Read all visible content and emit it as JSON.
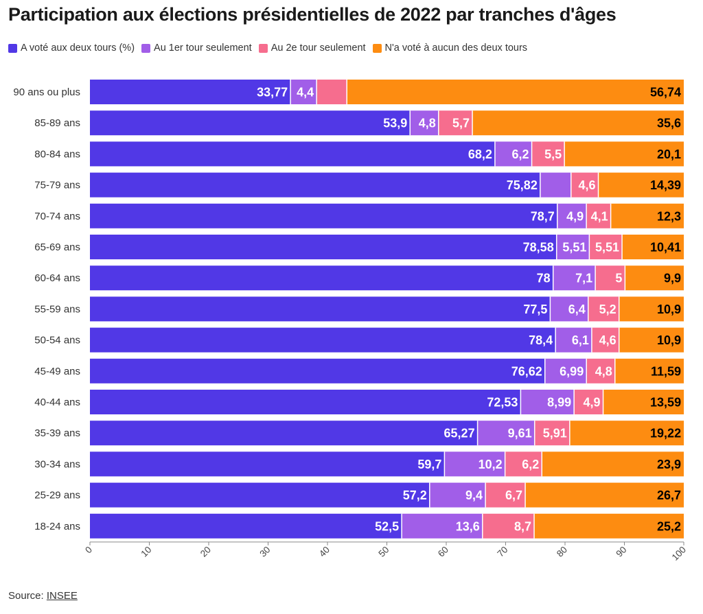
{
  "title": "Participation aux élections présidentielles de 2022 par tranches d'âges",
  "source": {
    "prefix": "Source: ",
    "link_text": "INSEE"
  },
  "chart_data": {
    "type": "bar",
    "orientation": "horizontal",
    "stacked": true,
    "categories": [
      "90 ans ou plus",
      "85-89 ans",
      "80-84 ans",
      "75-79 ans",
      "70-74 ans",
      "65-69 ans",
      "60-64 ans",
      "55-59 ans",
      "50-54 ans",
      "45-49 ans",
      "40-44 ans",
      "35-39 ans",
      "30-34 ans",
      "25-29 ans",
      "18-24 ans"
    ],
    "series": [
      {
        "name": "A voté aux deux tours (%)",
        "color": "#5138e6",
        "label_color": "#ffffff",
        "values": [
          33.77,
          53.9,
          68.2,
          75.82,
          78.7,
          78.58,
          78,
          77.5,
          78.4,
          76.62,
          72.53,
          65.27,
          59.7,
          57.2,
          52.5
        ],
        "labels": [
          "33,77",
          "53,9",
          "68,2",
          "75,82",
          "78,7",
          "78,58",
          "78",
          "77,5",
          "78,4",
          "76,62",
          "72,53",
          "65,27",
          "59,7",
          "57,2",
          "52,5"
        ]
      },
      {
        "name": "Au 1er tour seulement",
        "color": "#a15ee8",
        "label_color": "#ffffff",
        "values": [
          4.4,
          4.8,
          6.2,
          5.19,
          4.9,
          5.51,
          7.1,
          6.4,
          6.1,
          6.99,
          8.99,
          9.61,
          10.2,
          9.4,
          13.6
        ],
        "labels": [
          "4,4",
          "4,8",
          "6,2",
          "",
          "4,9",
          "5,51",
          "7,1",
          "6,4",
          "6,1",
          "6,99",
          "8,99",
          "9,61",
          "10,2",
          "9,4",
          "13,6"
        ]
      },
      {
        "name": "Au 2e tour seulement",
        "color": "#f66d8e",
        "label_color": "#ffffff",
        "values": [
          5.09,
          5.7,
          5.5,
          4.6,
          4.1,
          5.51,
          5,
          5.2,
          4.6,
          4.8,
          4.9,
          5.91,
          6.2,
          6.7,
          8.7
        ],
        "labels": [
          "",
          "5,7",
          "5,5",
          "4,6",
          "4,1",
          "5,51",
          "5",
          "5,2",
          "4,6",
          "4,8",
          "4,9",
          "5,91",
          "6,2",
          "6,7",
          "8,7"
        ]
      },
      {
        "name": "N'a voté à aucun des deux tours",
        "color": "#fd8c11",
        "label_color": "#000000",
        "values": [
          56.74,
          35.6,
          20.1,
          14.39,
          12.3,
          10.41,
          9.9,
          10.9,
          10.9,
          11.59,
          13.59,
          19.22,
          23.9,
          26.7,
          25.2
        ],
        "labels": [
          "56,74",
          "35,6",
          "20,1",
          "14,39",
          "12,3",
          "10,41",
          "9,9",
          "10,9",
          "10,9",
          "11,59",
          "13,59",
          "19,22",
          "23,9",
          "26,7",
          "25,2"
        ]
      }
    ],
    "x_ticks": [
      0,
      10,
      20,
      30,
      40,
      50,
      60,
      70,
      80,
      90,
      100
    ],
    "xlim": [
      0,
      100
    ],
    "legend_position": "top-left",
    "grid": false
  }
}
